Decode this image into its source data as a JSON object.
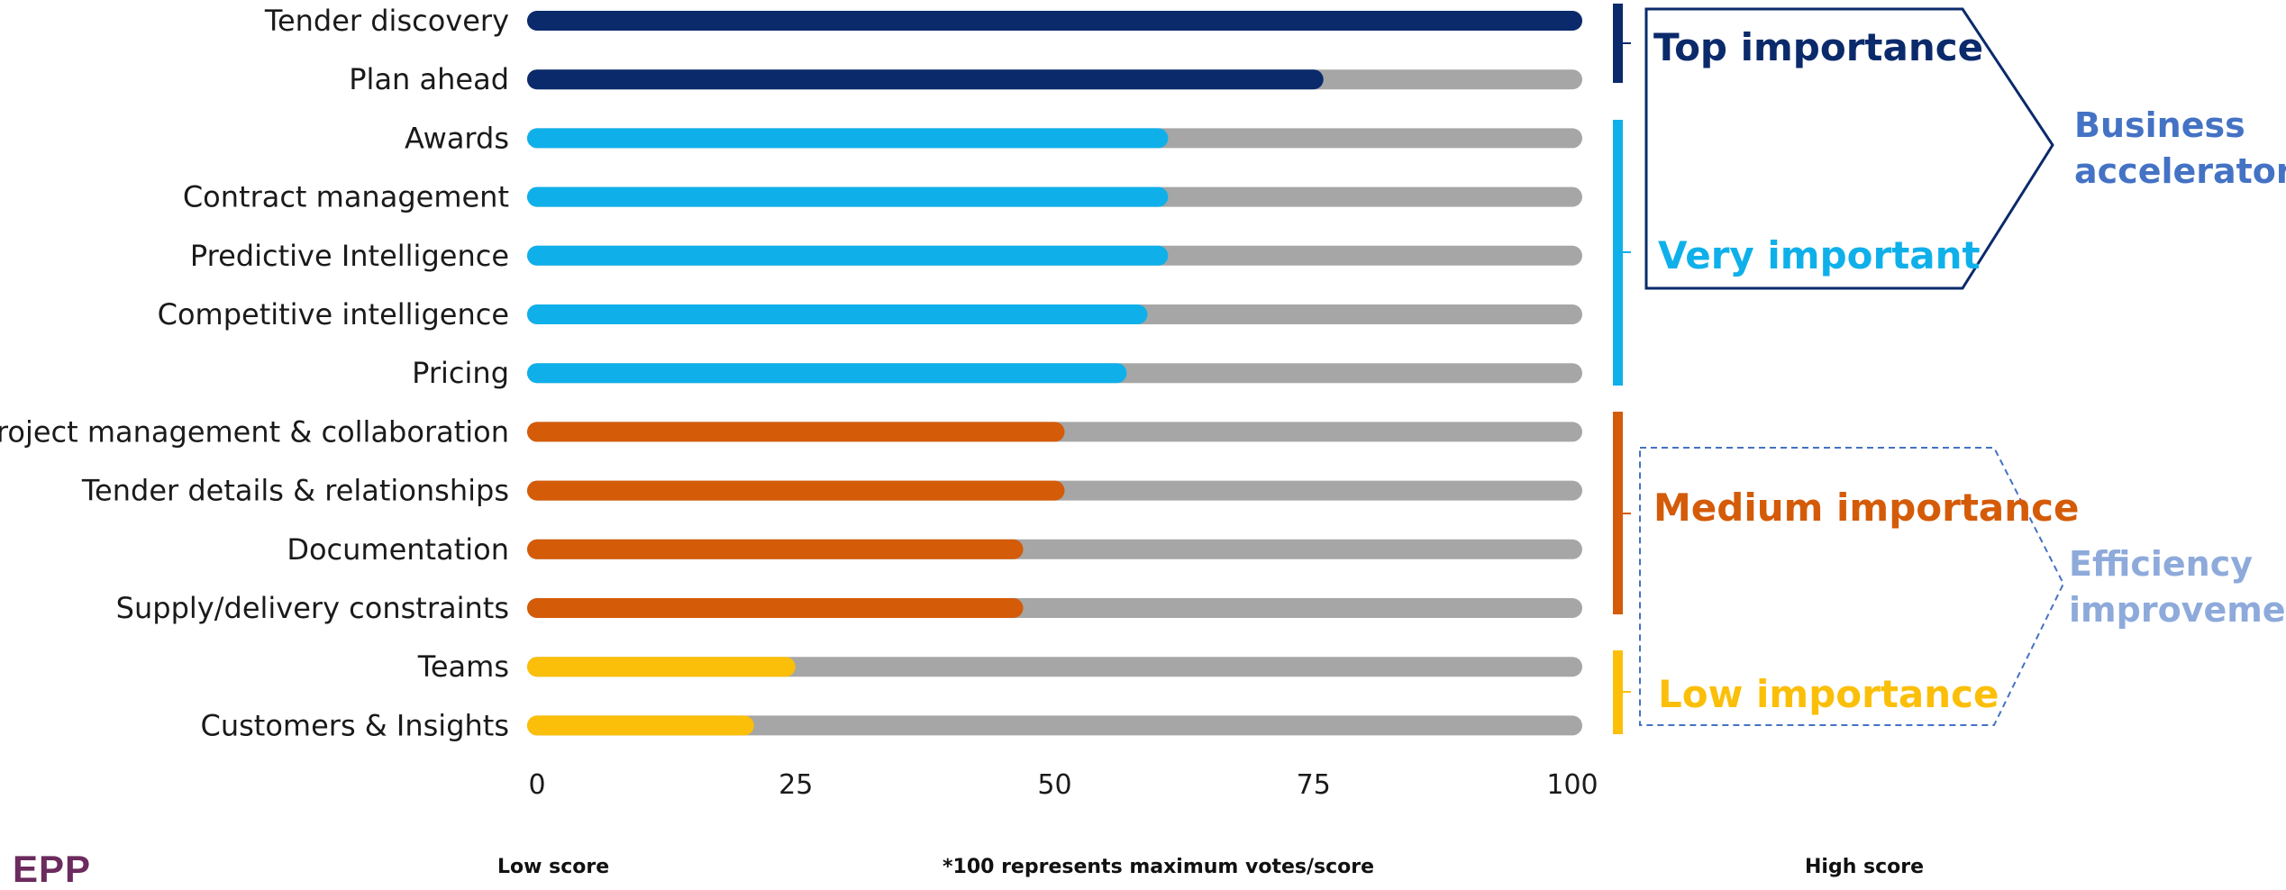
{
  "chart_data": {
    "type": "bar",
    "orientation": "horizontal",
    "categories": [
      "Tender discovery",
      "Plan ahead",
      "Awards",
      "Contract management",
      "Predictive Intelligence",
      "Competitive intelligence",
      "Pricing",
      "Project management & collaboration",
      "Tender details & relationships",
      "Documentation",
      "Supply/delivery constraints",
      "Teams",
      "Customers & Insights"
    ],
    "values": [
      100,
      75,
      60,
      60,
      60,
      58,
      56,
      50,
      50,
      46,
      46,
      24,
      20
    ],
    "bar_colors": [
      "#0b2a6b",
      "#0b2a6b",
      "#0fb0ea",
      "#0fb0ea",
      "#0fb0ea",
      "#0fb0ea",
      "#0fb0ea",
      "#d45b08",
      "#d45b08",
      "#d45b08",
      "#d45b08",
      "#fbbf09",
      "#fbbf09"
    ],
    "track_color": "#a6a6a6",
    "xlim": [
      0,
      100
    ],
    "xticks": [
      0,
      25,
      50,
      75,
      100
    ],
    "groups": [
      {
        "label": "Top importance",
        "color": "#0b2a6b"
      },
      {
        "label": "Very important",
        "color": "#0fb0ea"
      },
      {
        "label": "Medium importance",
        "color": "#d45b08"
      },
      {
        "label": "Low importance",
        "color": "#fbbf09"
      }
    ],
    "meta_groups": [
      {
        "label_line1": "Business",
        "label_line2": "accelerators",
        "color": "#4472c4"
      },
      {
        "label_line1": "Efficiency",
        "label_line2": "improvement",
        "color": "#8eaadb"
      }
    ]
  },
  "footer": {
    "low_score": "Low score",
    "note": "*100 represents maximum votes/score",
    "high_score": "High score",
    "logo_text": "EPP"
  }
}
